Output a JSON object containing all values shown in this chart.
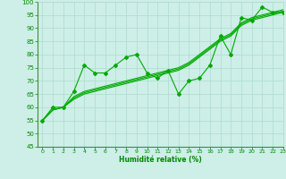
{
  "background_color": "#ceeee8",
  "grid_color": "#aaddcc",
  "line_color": "#00aa00",
  "text_color": "#008800",
  "xlabel": "Humidité relative (%)",
  "ylim": [
    45,
    100
  ],
  "xlim": [
    -0.5,
    23
  ],
  "yticks": [
    45,
    50,
    55,
    60,
    65,
    70,
    75,
    80,
    85,
    90,
    95,
    100
  ],
  "xticks": [
    0,
    1,
    2,
    3,
    4,
    5,
    6,
    7,
    8,
    9,
    10,
    11,
    12,
    13,
    14,
    15,
    16,
    17,
    18,
    19,
    20,
    21,
    22,
    23
  ],
  "series_smooth1": [
    55,
    59,
    60,
    63,
    65,
    66,
    67,
    68,
    69,
    70,
    71,
    72,
    73,
    74,
    76,
    79,
    82,
    85,
    87,
    91,
    93,
    94,
    95,
    96
  ],
  "series_smooth2": [
    55,
    59,
    60,
    63.5,
    65.5,
    66.5,
    67.5,
    68.5,
    69.5,
    70.5,
    71.5,
    72.5,
    73.5,
    74.5,
    76.5,
    79.5,
    82.5,
    85.5,
    87.5,
    91.5,
    93.5,
    94.5,
    95.5,
    96.5
  ],
  "series_smooth3": [
    55,
    59,
    60,
    64,
    66,
    67,
    68,
    69,
    70,
    71,
    72,
    73,
    74,
    75,
    77,
    80,
    83,
    86,
    88,
    92,
    94,
    95,
    96,
    97
  ],
  "series_marker": [
    55,
    60,
    60,
    66,
    76,
    73,
    73,
    76,
    79,
    80,
    73,
    71,
    74,
    65,
    70,
    71,
    76,
    87,
    80,
    94,
    93,
    98,
    96,
    96
  ]
}
